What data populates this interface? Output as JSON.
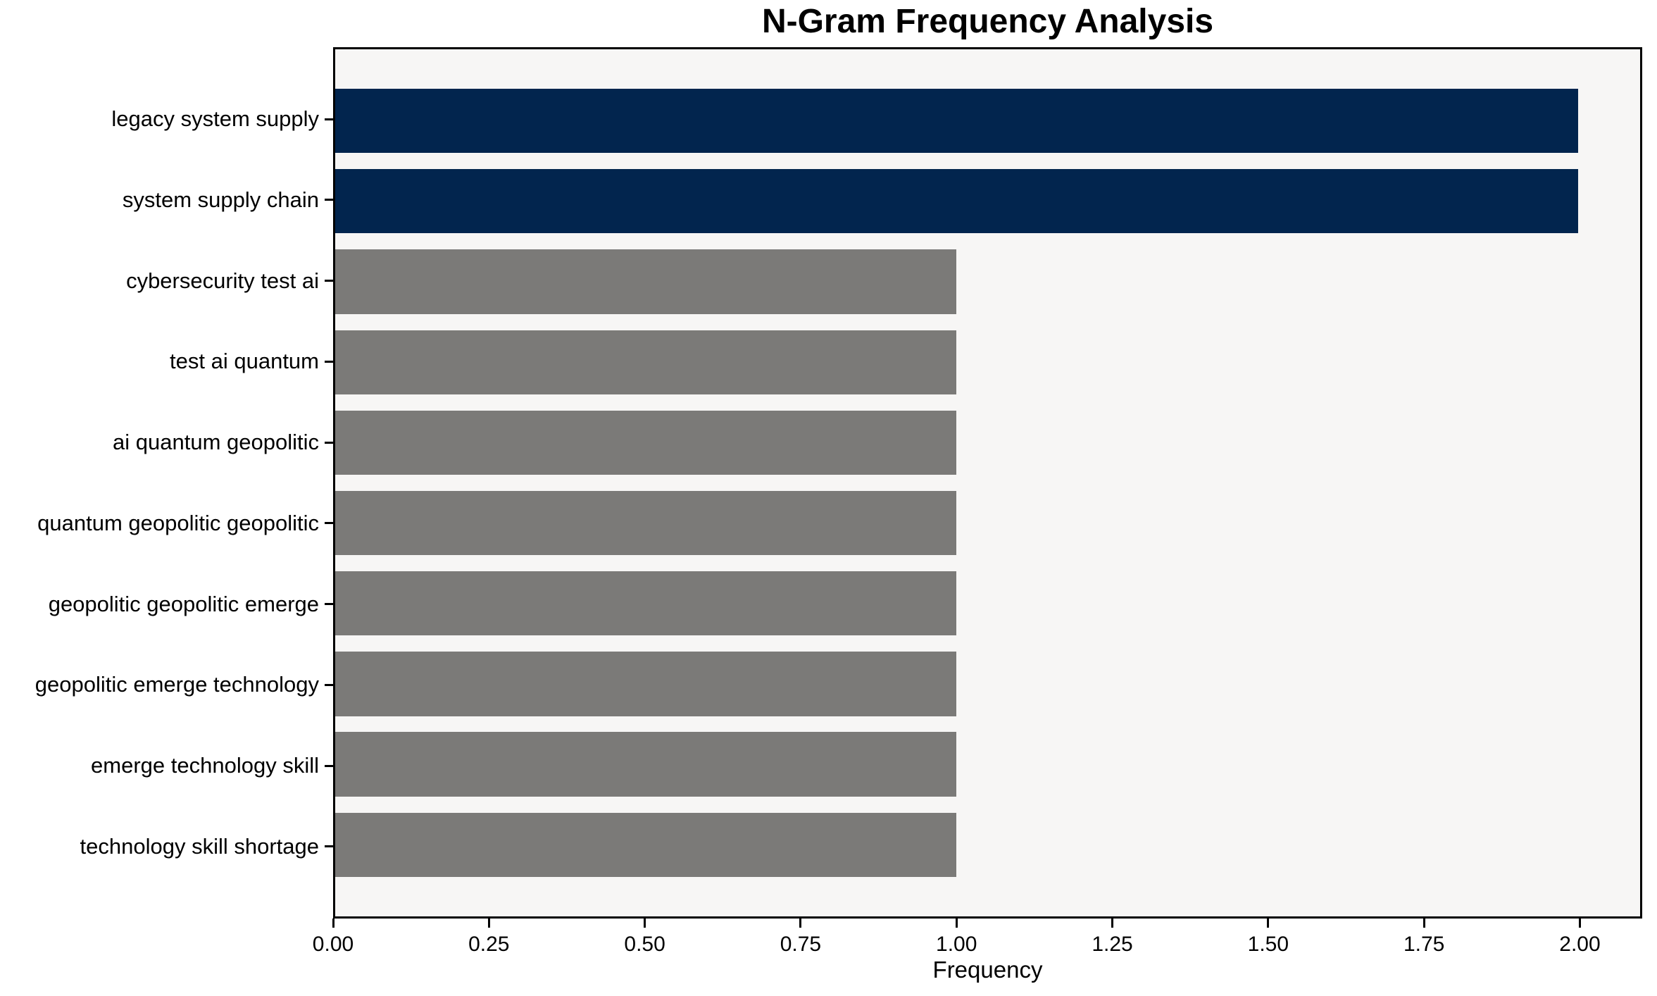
{
  "chart_data": {
    "type": "bar",
    "orientation": "horizontal",
    "title": "N-Gram Frequency Analysis",
    "xlabel": "Frequency",
    "ylabel": "",
    "categories": [
      "legacy system supply",
      "system supply chain",
      "cybersecurity test ai",
      "test ai quantum",
      "ai quantum geopolitic",
      "quantum geopolitic geopolitic",
      "geopolitic geopolitic emerge",
      "geopolitic emerge technology",
      "emerge technology skill",
      "technology skill shortage"
    ],
    "values": [
      2,
      2,
      1,
      1,
      1,
      1,
      1,
      1,
      1,
      1
    ],
    "bar_colors": [
      "#02254e",
      "#02254e",
      "#7b7a78",
      "#7b7a78",
      "#7b7a78",
      "#7b7a78",
      "#7b7a78",
      "#7b7a78",
      "#7b7a78",
      "#7b7a78"
    ],
    "colors": {
      "highlight": "#02254e",
      "default": "#7b7a78",
      "plot_background": "#f7f6f5",
      "figure_background": "#ffffff",
      "spine": "#000000",
      "text": "#000000"
    },
    "xlim": [
      0,
      2.1
    ],
    "xticks": {
      "values": [
        0,
        0.25,
        0.5,
        0.75,
        1.0,
        1.25,
        1.5,
        1.75,
        2.0
      ],
      "labels": [
        "0.00",
        "0.25",
        "0.50",
        "0.75",
        "1.00",
        "1.25",
        "1.50",
        "1.75",
        "2.00"
      ]
    },
    "grid": false,
    "legend": null,
    "bar_thickness_ratio": 0.8,
    "axis_margin_units": 0.49
  }
}
